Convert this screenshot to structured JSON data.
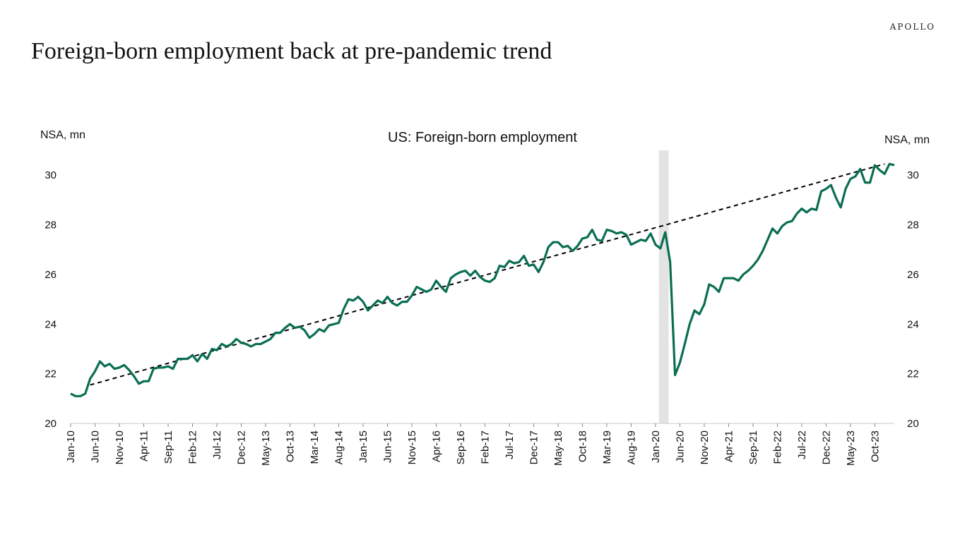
{
  "brand": "APOLLO",
  "title": "Foreign-born employment back at pre-pandemic trend",
  "chart_data": {
    "type": "line",
    "title": "US: Foreign-born employment",
    "ylabel_left": "NSA, mn",
    "ylabel_right": "NSA, mn",
    "ylim": [
      20,
      31
    ],
    "yticks": [
      20,
      22,
      24,
      26,
      28,
      30
    ],
    "x_start": "Jan-10",
    "x_frequency": "monthly",
    "x_tick_labels": [
      "Jan-10",
      "Jun-10",
      "Nov-10",
      "Apr-11",
      "Sep-11",
      "Feb-12",
      "Jul-12",
      "Dec-12",
      "May-13",
      "Oct-13",
      "Mar-14",
      "Aug-14",
      "Jan-15",
      "Jun-15",
      "Nov-15",
      "Apr-16",
      "Sep-16",
      "Feb-17",
      "Jul-17",
      "Dec-17",
      "May-18",
      "Oct-18",
      "Mar-19",
      "Aug-19",
      "Jan-20",
      "Jun-20",
      "Nov-20",
      "Apr-21",
      "Sep-21",
      "Feb-22",
      "Jul-22",
      "Dec-22",
      "May-23",
      "Oct-23"
    ],
    "recession_shade": {
      "from": "Feb-20",
      "to": "Apr-20",
      "color": "#e3e3e3"
    },
    "series": [
      {
        "name": "",
        "color": "#0a6e52",
        "style": "solid",
        "values": [
          21.2,
          21.1,
          21.1,
          21.2,
          21.8,
          22.1,
          22.5,
          22.3,
          22.4,
          22.2,
          22.25,
          22.35,
          22.15,
          21.9,
          21.6,
          21.7,
          21.7,
          22.2,
          22.25,
          22.25,
          22.3,
          22.2,
          22.6,
          22.6,
          22.6,
          22.75,
          22.5,
          22.8,
          22.6,
          23.0,
          22.95,
          23.2,
          23.1,
          23.2,
          23.4,
          23.25,
          23.2,
          23.1,
          23.2,
          23.2,
          23.3,
          23.4,
          23.65,
          23.65,
          23.85,
          24.0,
          23.85,
          23.9,
          23.75,
          23.45,
          23.6,
          23.8,
          23.7,
          23.95,
          24.0,
          24.05,
          24.6,
          25.0,
          24.95,
          25.1,
          24.9,
          24.55,
          24.75,
          24.95,
          24.85,
          25.1,
          24.85,
          24.75,
          24.9,
          24.9,
          25.15,
          25.5,
          25.4,
          25.3,
          25.4,
          25.75,
          25.5,
          25.3,
          25.85,
          26.0,
          26.1,
          26.15,
          25.95,
          26.15,
          25.9,
          25.75,
          25.7,
          25.85,
          26.35,
          26.3,
          26.55,
          26.45,
          26.5,
          26.75,
          26.35,
          26.4,
          26.1,
          26.5,
          27.1,
          27.3,
          27.3,
          27.1,
          27.15,
          26.95,
          27.15,
          27.45,
          27.5,
          27.8,
          27.4,
          27.35,
          27.8,
          27.75,
          27.65,
          27.7,
          27.6,
          27.2,
          27.3,
          27.4,
          27.35,
          27.65,
          27.2,
          27.05,
          27.7,
          26.5,
          21.95,
          22.45,
          23.2,
          24.0,
          24.55,
          24.4,
          24.8,
          25.6,
          25.5,
          25.3,
          25.85,
          25.85,
          25.85,
          25.75,
          26.0,
          26.15,
          26.35,
          26.6,
          26.95,
          27.4,
          27.85,
          27.65,
          27.95,
          28.1,
          28.15,
          28.45,
          28.65,
          28.5,
          28.65,
          28.6,
          29.35,
          29.45,
          29.6,
          29.1,
          28.7,
          29.45,
          29.85,
          29.95,
          30.25,
          29.7,
          29.7,
          30.4,
          30.2,
          30.05,
          30.45,
          30.4
        ]
      },
      {
        "name": "",
        "color": "#000000",
        "style": "dashed",
        "x_range": [
          "May-10",
          "Dec-23"
        ],
        "values": [
          21.55,
          30.45
        ]
      }
    ]
  }
}
